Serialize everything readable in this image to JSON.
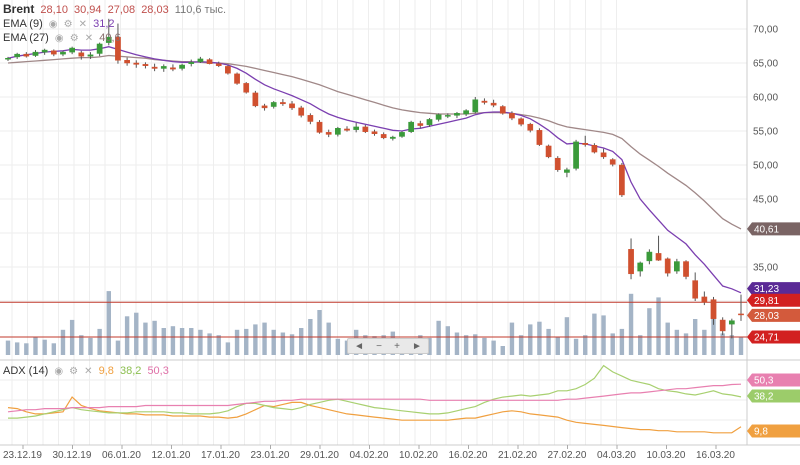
{
  "header": {
    "symbol": "Brent",
    "open": "28,10",
    "high": "30,94",
    "low": "27,08",
    "close": "28,03",
    "volume": "110,6 тыс."
  },
  "indicators": {
    "ema9": {
      "label": "EMA (9)",
      "value": "31,2",
      "color": "#7b3fb0"
    },
    "ema27": {
      "label": "EMA (27)",
      "value": "40,6",
      "color": "#a08888"
    },
    "adx": {
      "label": "ADX (14)",
      "v1": "9,8",
      "v2": "38,2",
      "v3": "50,3",
      "c1": "#f0a040",
      "c2": "#a8d070",
      "c3": "#e880b0"
    }
  },
  "navbar": {
    "left": "◄",
    "minus": "−",
    "plus": "+",
    "right": "►"
  },
  "price_axis": [
    "70,00",
    "65,00",
    "60,00",
    "55,00",
    "50,00",
    "45,00",
    "35,00"
  ],
  "badges": {
    "ema27": "40,61",
    "ema9": "31,23",
    "hline1": "29,81",
    "last": "28,03",
    "hline2": "24,71",
    "adx_pink": "50,3",
    "adx_green": "38,2",
    "adx_orange": "9,8"
  },
  "x_labels": [
    "23.12.19",
    "30.12.19",
    "06.01.20",
    "12.01.20",
    "17.01.20",
    "23.01.20",
    "29.01.20",
    "04.02.20",
    "10.02.20",
    "16.02.20",
    "21.02.20",
    "27.02.20",
    "04.03.20",
    "10.03.20",
    "16.03.20"
  ],
  "chart_data": {
    "type": "candlestick",
    "title": "Brent",
    "ylim": [
      24,
      73
    ],
    "candles": [
      [
        65.6,
        65.9,
        65.3,
        65.7
      ],
      [
        65.9,
        66.5,
        65.6,
        66.3
      ],
      [
        66.3,
        66.6,
        65.8,
        66.0
      ],
      [
        66.1,
        66.9,
        65.9,
        66.6
      ],
      [
        66.6,
        67.1,
        66.2,
        66.9
      ],
      [
        66.8,
        67.0,
        66.0,
        66.3
      ],
      [
        66.3,
        66.8,
        66.0,
        66.6
      ],
      [
        66.6,
        67.4,
        66.3,
        67.2
      ],
      [
        66.5,
        66.8,
        65.5,
        66.0
      ],
      [
        66.0,
        66.6,
        65.6,
        66.2
      ],
      [
        66.4,
        68.0,
        66.0,
        67.8
      ],
      [
        68.0,
        71.5,
        67.6,
        68.8
      ],
      [
        68.8,
        70.8,
        64.9,
        65.4
      ],
      [
        65.4,
        65.8,
        64.6,
        65.0
      ],
      [
        65.0,
        65.4,
        64.3,
        64.8
      ],
      [
        64.8,
        65.1,
        64.2,
        64.6
      ],
      [
        64.4,
        64.9,
        63.8,
        64.2
      ],
      [
        64.2,
        64.8,
        63.7,
        64.5
      ],
      [
        64.3,
        64.8,
        63.8,
        64.1
      ],
      [
        64.2,
        64.9,
        63.9,
        64.7
      ],
      [
        64.9,
        65.5,
        64.5,
        65.1
      ],
      [
        65.2,
        65.9,
        65.0,
        65.6
      ],
      [
        65.5,
        65.7,
        64.8,
        64.9
      ],
      [
        64.9,
        65.2,
        64.4,
        64.6
      ],
      [
        64.5,
        64.7,
        63.3,
        63.5
      ],
      [
        63.4,
        63.6,
        61.8,
        62.0
      ],
      [
        62.0,
        62.2,
        60.5,
        60.7
      ],
      [
        60.6,
        60.9,
        58.5,
        58.7
      ],
      [
        58.7,
        59.0,
        58.0,
        58.4
      ],
      [
        58.6,
        59.4,
        58.3,
        59.2
      ],
      [
        59.2,
        59.7,
        58.7,
        59.0
      ],
      [
        59.0,
        59.4,
        58.1,
        58.4
      ],
      [
        58.4,
        58.7,
        57.0,
        57.3
      ],
      [
        57.3,
        57.6,
        56.0,
        56.4
      ],
      [
        56.3,
        56.6,
        54.6,
        54.8
      ],
      [
        54.8,
        55.2,
        54.1,
        54.5
      ],
      [
        54.5,
        55.6,
        54.2,
        55.4
      ],
      [
        55.3,
        55.7,
        54.9,
        55.1
      ],
      [
        55.2,
        56.2,
        54.8,
        55.6
      ],
      [
        55.6,
        55.9,
        54.7,
        54.9
      ],
      [
        54.9,
        55.2,
        54.3,
        54.6
      ],
      [
        54.5,
        54.8,
        53.8,
        54.0
      ],
      [
        53.9,
        54.3,
        53.6,
        54.1
      ],
      [
        54.2,
        55.0,
        54.0,
        54.8
      ],
      [
        54.9,
        56.5,
        54.7,
        56.3
      ],
      [
        56.1,
        56.5,
        55.4,
        55.8
      ],
      [
        55.9,
        56.9,
        55.6,
        56.7
      ],
      [
        56.7,
        57.6,
        56.4,
        57.4
      ],
      [
        57.2,
        57.6,
        56.9,
        57.3
      ],
      [
        57.3,
        57.8,
        56.9,
        57.6
      ],
      [
        57.5,
        58.2,
        57.2,
        58.0
      ],
      [
        57.8,
        60.0,
        57.6,
        59.6
      ],
      [
        59.4,
        59.8,
        58.9,
        59.2
      ],
      [
        59.1,
        59.6,
        58.5,
        58.8
      ],
      [
        58.6,
        58.8,
        57.4,
        57.6
      ],
      [
        57.6,
        57.9,
        56.6,
        56.9
      ],
      [
        56.8,
        57.0,
        55.7,
        56.0
      ],
      [
        56.0,
        56.2,
        54.8,
        55.1
      ],
      [
        55.1,
        55.4,
        52.8,
        53.0
      ],
      [
        52.8,
        53.0,
        51.0,
        51.2
      ],
      [
        51.0,
        51.3,
        49.0,
        49.3
      ],
      [
        48.9,
        49.6,
        48.2,
        49.3
      ],
      [
        49.5,
        53.7,
        49.2,
        53.4
      ],
      [
        53.2,
        54.3,
        52.7,
        53.0
      ],
      [
        52.9,
        53.2,
        51.7,
        51.9
      ],
      [
        51.8,
        52.4,
        50.9,
        51.2
      ],
      [
        50.8,
        51.0,
        49.8,
        50.1
      ],
      [
        50.0,
        50.3,
        45.3,
        45.6
      ],
      [
        37.6,
        39.2,
        33.2,
        34.0
      ],
      [
        34.4,
        35.8,
        33.6,
        35.6
      ],
      [
        35.9,
        37.6,
        35.4,
        37.2
      ],
      [
        37.0,
        39.6,
        35.9,
        36.0
      ],
      [
        36.2,
        36.4,
        33.6,
        34.1
      ],
      [
        34.4,
        36.2,
        34.0,
        35.8
      ],
      [
        35.8,
        36.0,
        33.2,
        33.6
      ],
      [
        33.0,
        34.2,
        30.0,
        30.4
      ],
      [
        30.6,
        31.4,
        29.4,
        29.8
      ],
      [
        30.2,
        30.6,
        26.5,
        27.4
      ],
      [
        27.2,
        27.6,
        25.0,
        25.6
      ],
      [
        26.6,
        27.4,
        24.5,
        27.1
      ],
      [
        28.1,
        30.94,
        27.08,
        28.03
      ]
    ],
    "volume": [
      16,
      14,
      13,
      20,
      17,
      13,
      28,
      39,
      22,
      19,
      29,
      71,
      16,
      43,
      47,
      36,
      38,
      30,
      32,
      30,
      30,
      28,
      24,
      22,
      14,
      28,
      29,
      34,
      36,
      28,
      25,
      23,
      30,
      40,
      50,
      36,
      18,
      16,
      28,
      22,
      21,
      22,
      26,
      18,
      16,
      22,
      19,
      38,
      32,
      25,
      22,
      23,
      19,
      16,
      10,
      36,
      22,
      34,
      37,
      29,
      20,
      42,
      18,
      22,
      46,
      44,
      24,
      29,
      68,
      22,
      52,
      64,
      36,
      28,
      24,
      40,
      28,
      42,
      24,
      22,
      20
    ],
    "ema9": [
      65.7,
      66.0,
      66.2,
      66.4,
      66.6,
      66.7,
      66.8,
      67.0,
      66.9,
      66.9,
      67.1,
      67.4,
      67.0,
      66.6,
      66.2,
      65.9,
      65.6,
      65.4,
      65.2,
      65.1,
      65.1,
      65.2,
      65.1,
      65.0,
      64.7,
      64.2,
      63.5,
      62.6,
      61.8,
      61.2,
      60.7,
      60.2,
      59.6,
      59.0,
      58.2,
      57.5,
      57.0,
      56.6,
      56.3,
      56.0,
      55.7,
      55.4,
      55.1,
      55.0,
      55.3,
      55.4,
      55.7,
      56.0,
      56.3,
      56.6,
      56.9,
      57.4,
      57.7,
      57.8,
      57.8,
      57.6,
      57.3,
      56.8,
      56.0,
      55.1,
      54.0,
      53.1,
      53.2,
      53.1,
      52.8,
      52.5,
      52.0,
      50.8,
      47.5,
      45.0,
      43.4,
      41.9,
      40.4,
      39.4,
      38.4,
      36.8,
      35.4,
      33.8,
      32.2,
      31.8,
      31.2
    ],
    "ema27": [
      65.0,
      65.1,
      65.2,
      65.3,
      65.4,
      65.5,
      65.6,
      65.7,
      65.8,
      65.8,
      65.9,
      66.1,
      66.0,
      65.9,
      65.8,
      65.7,
      65.5,
      65.4,
      65.3,
      65.2,
      65.2,
      65.1,
      65.0,
      65.0,
      64.9,
      64.7,
      64.5,
      64.2,
      63.9,
      63.6,
      63.3,
      63.0,
      62.6,
      62.2,
      61.8,
      61.3,
      60.8,
      60.4,
      60.0,
      59.6,
      59.2,
      58.8,
      58.4,
      58.1,
      57.9,
      57.7,
      57.6,
      57.5,
      57.5,
      57.5,
      57.5,
      57.6,
      57.7,
      57.7,
      57.7,
      57.6,
      57.4,
      57.2,
      56.9,
      56.5,
      56.0,
      55.6,
      55.4,
      55.2,
      55.0,
      54.8,
      54.5,
      53.9,
      52.7,
      51.6,
      50.7,
      49.8,
      48.8,
      47.9,
      47.0,
      45.9,
      44.7,
      43.4,
      42.1,
      41.3,
      40.61
    ],
    "hlines": [
      29.81,
      24.71
    ],
    "adx": {
      "ylim": [
        0,
        70
      ],
      "orange": [
        28,
        27,
        24,
        22,
        22,
        23,
        24,
        38,
        30,
        27,
        25,
        24,
        23,
        22,
        22,
        21,
        21,
        21,
        20,
        20,
        20,
        20,
        19,
        19,
        18,
        19,
        22,
        26,
        30,
        29,
        31,
        33,
        33,
        30,
        28,
        26,
        24,
        22,
        21,
        20,
        19,
        18,
        17,
        16,
        16,
        16,
        16,
        16,
        16,
        17,
        18,
        18,
        20,
        22,
        24,
        25,
        24,
        22,
        21,
        20,
        19,
        16,
        14,
        13,
        12,
        11,
        10,
        9,
        8,
        7,
        7,
        6,
        6,
        5,
        5,
        5,
        5,
        4,
        4,
        4,
        9.8
      ],
      "green": [
        18,
        18,
        19,
        20,
        22,
        24,
        26,
        28,
        26,
        25,
        24,
        23,
        23,
        23,
        24,
        24,
        24,
        24,
        23,
        23,
        22,
        22,
        22,
        23,
        25,
        29,
        32,
        32,
        30,
        28,
        27,
        26,
        28,
        31,
        33,
        35,
        36,
        34,
        32,
        30,
        28,
        27,
        26,
        25,
        24,
        23,
        22,
        22,
        23,
        25,
        27,
        29,
        33,
        36,
        38,
        39,
        40,
        39,
        40,
        41,
        44,
        44,
        46,
        50,
        56,
        68,
        62,
        58,
        54,
        52,
        50,
        46,
        44,
        43,
        41,
        40,
        42,
        44,
        41,
        40,
        38.2
      ],
      "pink": [
        24,
        25,
        26,
        26,
        27,
        27,
        27,
        28,
        28,
        28,
        28,
        29,
        29,
        29,
        29,
        30,
        30,
        30,
        30,
        30,
        30,
        30,
        30,
        30,
        30,
        31,
        32,
        33,
        34,
        34,
        35,
        35,
        36,
        36,
        36,
        36,
        36,
        36,
        36,
        36,
        36,
        36,
        36,
        36,
        36,
        36,
        35,
        35,
        35,
        35,
        35,
        35,
        35,
        35,
        35,
        35,
        35,
        35,
        35,
        35,
        35,
        36,
        36,
        37,
        38,
        39,
        40,
        41,
        42,
        42,
        43,
        44,
        45,
        46,
        46,
        47,
        48,
        49,
        49,
        50,
        50.3
      ]
    }
  }
}
